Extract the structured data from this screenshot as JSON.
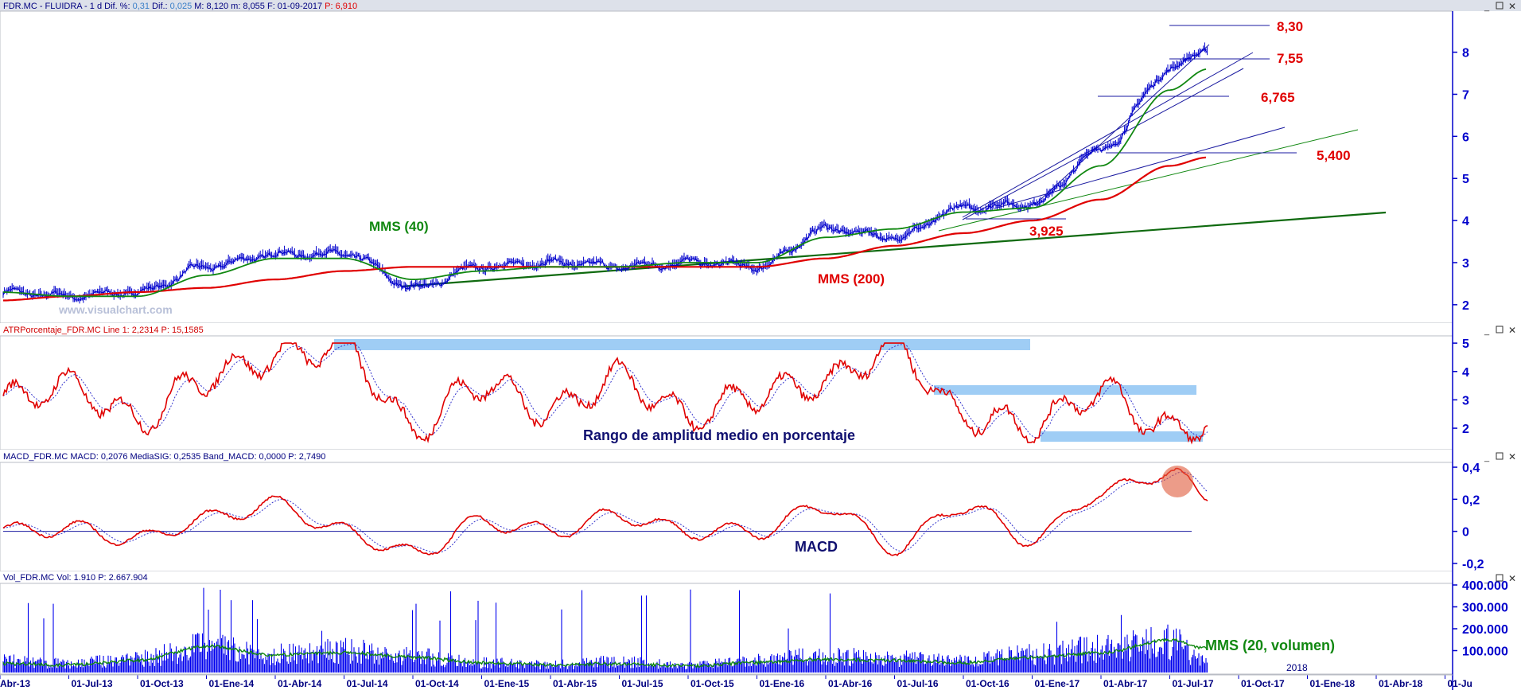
{
  "panels": {
    "price": {
      "header_parts": [
        {
          "text": "FDR.MC - FLUIDRA -  1 d  Dif. %: ",
          "color": "#000080"
        },
        {
          "text": "0,31",
          "color": "#3a7fc8"
        },
        {
          "text": "  Dif.: ",
          "color": "#000080"
        },
        {
          "text": "0,025",
          "color": "#3a7fc8"
        },
        {
          "text": "  M: 8,120  m: 8,055  F: 01-09-2017  ",
          "color": "#000080"
        },
        {
          "text": "P: 6,910",
          "color": "#e00000"
        }
      ],
      "watermark": "www.visualchart.com",
      "y_ticks": [
        "2",
        "3",
        "4",
        "5",
        "6",
        "7",
        "8"
      ],
      "annotations": [
        {
          "text": "MMS (40)",
          "color": "#118811"
        },
        {
          "text": "MMS (200)",
          "color": "#e00000"
        },
        {
          "text": "3,925",
          "color": "#e00000"
        },
        {
          "text": "5,400",
          "color": "#e00000"
        },
        {
          "text": "6,765",
          "color": "#e00000"
        },
        {
          "text": "7,55",
          "color": "#e00000"
        },
        {
          "text": "8,30",
          "color": "#e00000"
        }
      ]
    },
    "atr": {
      "header": "ATRPorcentaje_FDR.MC  Line 1: 2,2314  P: 15,1585",
      "label": "Rango de amplitud medio en porcentaje",
      "y_ticks": [
        "2",
        "3",
        "4",
        "5"
      ]
    },
    "macd": {
      "header": "MACD_FDR.MC  MACD: 0,2076  MediaSIG: 0,2535  Band_MACD: 0,0000  P: 2,7490",
      "label": "MACD",
      "y_ticks": [
        "0",
        "0,2",
        "0,4",
        "-0,2"
      ]
    },
    "volume": {
      "header": "Vol_FDR.MC  Vol: 1.910  P: 2.667.904",
      "label": "MMS (20, volumen)",
      "y_ticks": [
        "100.000",
        "200.000",
        "300.000",
        "400.000"
      ],
      "year_label": "2018"
    }
  },
  "x_axis_labels": [
    "Abr-13",
    "01-Jul-13",
    "01-Oct-13",
    "01-Ene-14",
    "01-Abr-14",
    "01-Jul-14",
    "01-Oct-14",
    "01-Ene-15",
    "01-Abr-15",
    "01-Jul-15",
    "01-Oct-15",
    "01-Ene-16",
    "01-Abr-16",
    "01-Jul-16",
    "01-Oct-16",
    "01-Ene-17",
    "01-Abr-17",
    "01-Jul-17",
    "01-Oct-17",
    "01-Ene-18",
    "01-Abr-18",
    "01-Ju"
  ],
  "colors": {
    "price": "#0000cc",
    "mms200": "#e00000",
    "mms40": "#118811",
    "atr": "#e00000",
    "macd": "#e00000",
    "signal": "#3333cc",
    "volume": "#0000ee",
    "axis": "#0000cc",
    "band": "#9fcdf5"
  },
  "chart_data": [
    {
      "type": "line",
      "title": "",
      "x": [
        "2013-04",
        "2013-07",
        "2013-10",
        "2014-01",
        "2014-04",
        "2014-07",
        "2014-10",
        "2015-01",
        "2015-04",
        "2015-07",
        "2015-10",
        "2016-01",
        "2016-04",
        "2016-07",
        "2016-10",
        "2017-01",
        "2017-04",
        "2017-07",
        "2017-09"
      ],
      "series": [
        {
          "name": "FDR.MC",
          "values": [
            2.3,
            2.2,
            2.3,
            2.9,
            3.2,
            3.2,
            2.4,
            2.9,
            3.0,
            2.9,
            3.0,
            2.9,
            3.8,
            3.6,
            4.3,
            4.4,
            5.7,
            7.6,
            8.1
          ]
        },
        {
          "name": "MMS (40)",
          "values": [
            2.3,
            2.2,
            2.2,
            2.7,
            3.1,
            3.1,
            2.6,
            2.8,
            2.9,
            2.9,
            3.0,
            3.0,
            3.6,
            3.8,
            4.2,
            4.3,
            5.3,
            7.1,
            7.6
          ]
        },
        {
          "name": "MMS (200)",
          "values": [
            2.1,
            2.2,
            2.3,
            2.4,
            2.6,
            2.8,
            2.9,
            2.9,
            2.9,
            2.9,
            2.9,
            2.9,
            3.1,
            3.4,
            3.7,
            4.0,
            4.5,
            5.3,
            5.5
          ]
        }
      ],
      "levels": [
        3.925,
        5.4,
        6.765,
        7.55,
        8.3
      ],
      "ylim": [
        1.6,
        8.9
      ]
    },
    {
      "type": "line",
      "title": "",
      "x": [
        "2013-04",
        "2013-07",
        "2013-10",
        "2014-01",
        "2014-04",
        "2014-07",
        "2014-10",
        "2015-01",
        "2015-04",
        "2015-07",
        "2015-10",
        "2016-01",
        "2016-04",
        "2016-07",
        "2016-10",
        "2017-01",
        "2017-04",
        "2017-07",
        "2017-09"
      ],
      "series": [
        {
          "name": "ATRPorcentaje_FDR.MC",
          "values": [
            3.0,
            3.5,
            2.3,
            3.8,
            4.5,
            4.9,
            2.0,
            3.6,
            2.6,
            3.8,
            2.4,
            3.2,
            3.6,
            4.9,
            2.4,
            2.1,
            3.3,
            1.9,
            2.2
          ]
        }
      ],
      "ylim": [
        1.3,
        5.2
      ]
    },
    {
      "type": "line",
      "title": "",
      "x": [
        "2013-04",
        "2013-07",
        "2013-10",
        "2014-01",
        "2014-04",
        "2014-07",
        "2014-10",
        "2015-01",
        "2015-04",
        "2015-07",
        "2015-10",
        "2016-01",
        "2016-04",
        "2016-07",
        "2016-10",
        "2017-01",
        "2017-04",
        "2017-07",
        "2017-09"
      ],
      "series": [
        {
          "name": "MACD",
          "values": [
            0.0,
            0.02,
            -0.05,
            0.08,
            0.17,
            0.0,
            -0.14,
            0.06,
            0.0,
            0.1,
            0.0,
            0.0,
            0.16,
            -0.1,
            0.16,
            -0.05,
            0.24,
            0.37,
            0.21
          ]
        },
        {
          "name": "MediaSIG",
          "values": [
            0.0,
            0.01,
            -0.03,
            0.06,
            0.15,
            0.02,
            -0.12,
            0.05,
            0.01,
            0.08,
            0.01,
            0.01,
            0.14,
            -0.07,
            0.14,
            -0.03,
            0.22,
            0.33,
            0.25
          ]
        }
      ],
      "ylim": [
        -0.2,
        0.4
      ]
    },
    {
      "type": "bar",
      "title": "",
      "categories": [
        "2013-04",
        "2013-07",
        "2013-10",
        "2014-01",
        "2014-04",
        "2014-07",
        "2014-10",
        "2015-01",
        "2015-04",
        "2015-07",
        "2015-10",
        "2016-01",
        "2016-04",
        "2016-07",
        "2016-10",
        "2017-01",
        "2017-04",
        "2017-07",
        "2017-09"
      ],
      "series": [
        {
          "name": "Vol_FDR.MC",
          "values": [
            60000,
            45000,
            70000,
            130000,
            95000,
            110000,
            80000,
            50000,
            40000,
            55000,
            35000,
            60000,
            85000,
            70000,
            60000,
            90000,
            120000,
            160000,
            50000
          ]
        },
        {
          "name": "MMS (20, volumen)",
          "values": [
            40000,
            35000,
            55000,
            120000,
            80000,
            90000,
            70000,
            45000,
            35000,
            40000,
            30000,
            45000,
            60000,
            55000,
            45000,
            70000,
            90000,
            150000,
            110000
          ]
        }
      ],
      "ylim": [
        0,
        400000
      ]
    }
  ]
}
